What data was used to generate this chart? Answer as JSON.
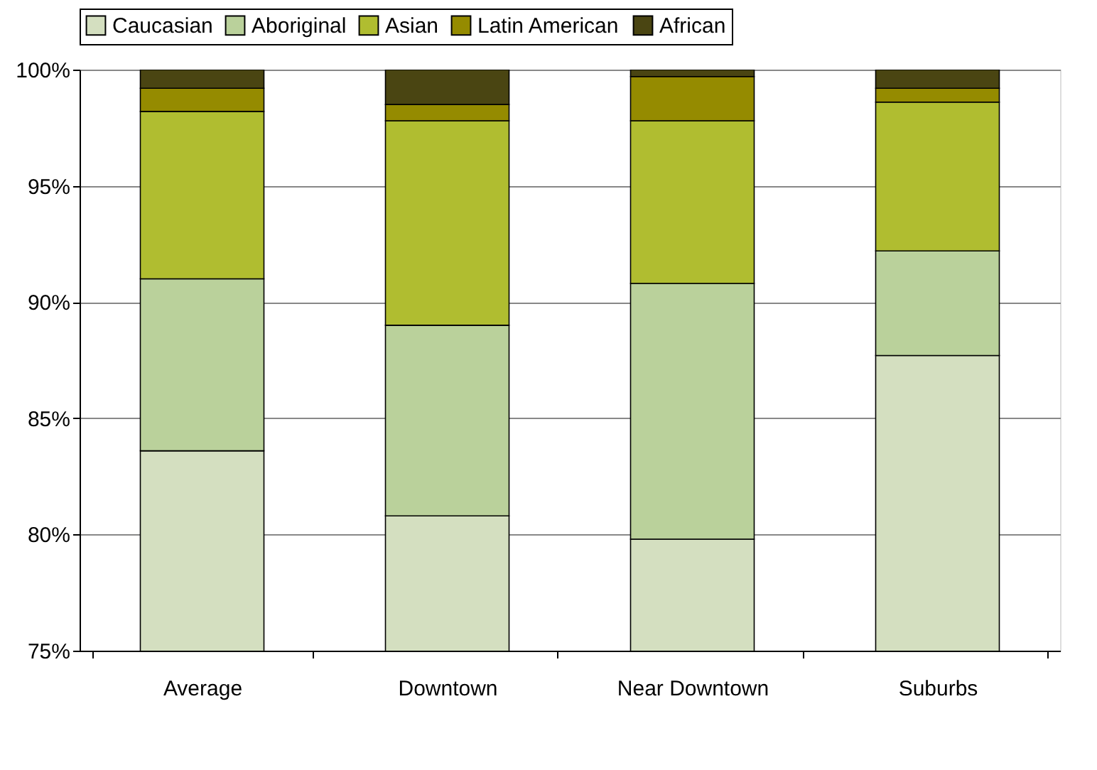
{
  "chart_data": {
    "type": "bar",
    "categories": [
      "Average",
      "Downtown",
      "Near Downtown",
      "Suburbs"
    ],
    "series": [
      {
        "name": "Caucasian",
        "color": "#d4dfc0",
        "base": [
          0,
          0,
          0,
          0
        ],
        "values": [
          83.6,
          80.8,
          79.8,
          87.7
        ]
      },
      {
        "name": "Aboriginal",
        "color": "#bad19b",
        "base": [
          83.6,
          80.8,
          79.8,
          87.7
        ],
        "values": [
          7.4,
          8.2,
          11.0,
          4.5
        ]
      },
      {
        "name": "Asian",
        "color": "#b0bd30",
        "base": [
          91.0,
          89.0,
          90.8,
          92.2
        ],
        "values": [
          7.2,
          8.8,
          7.0,
          6.4
        ]
      },
      {
        "name": "Latin American",
        "color": "#958b00",
        "base": [
          98.2,
          97.8,
          97.8,
          98.6
        ],
        "values": [
          1.0,
          0.7,
          1.9,
          0.6
        ]
      },
      {
        "name": "African",
        "color": "#4a4512",
        "base": [
          99.2,
          98.5,
          99.7,
          99.2
        ],
        "values": [
          0.8,
          1.5,
          0.3,
          0.8
        ]
      }
    ],
    "ylim": [
      75,
      100
    ],
    "yticks": [
      {
        "value": 75,
        "label": "75%"
      },
      {
        "value": 80,
        "label": "80%"
      },
      {
        "value": 85,
        "label": "85%"
      },
      {
        "value": 90,
        "label": "90%"
      },
      {
        "value": 95,
        "label": "95%"
      },
      {
        "value": 100,
        "label": "100%"
      }
    ],
    "grid": "y",
    "legend": "top"
  }
}
